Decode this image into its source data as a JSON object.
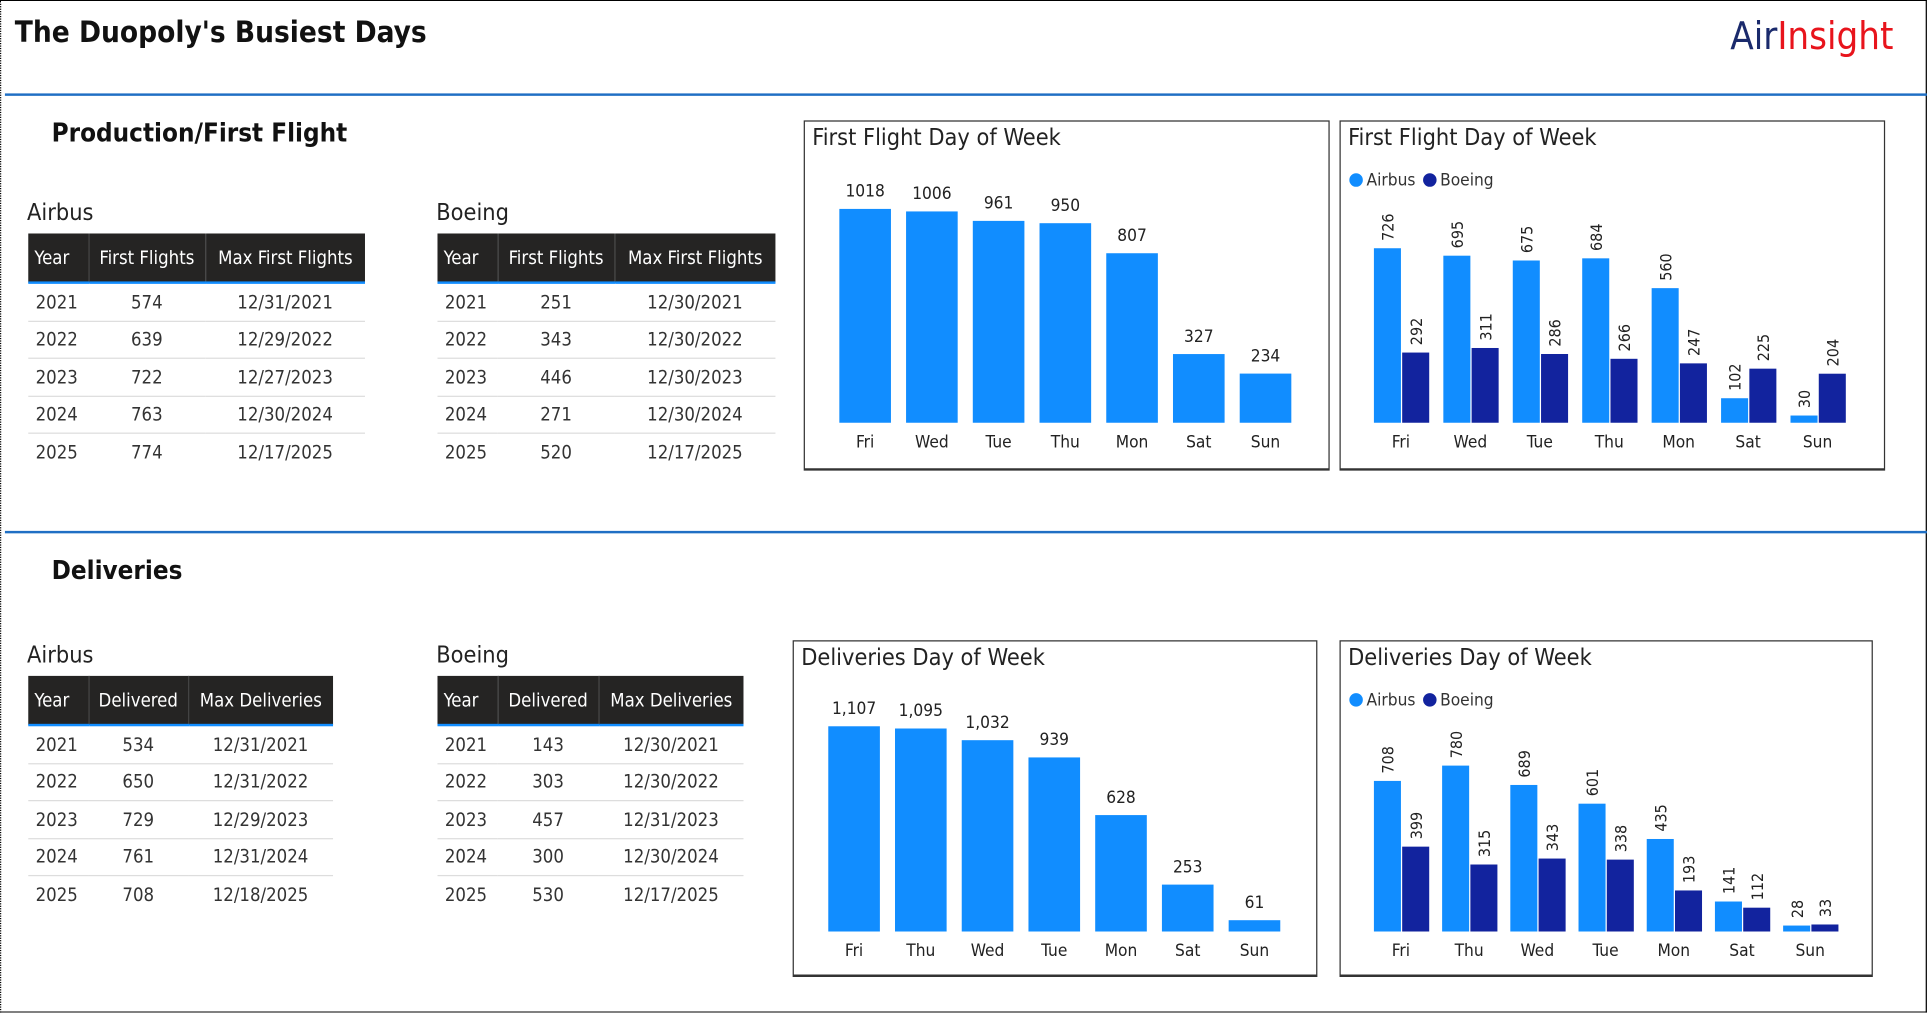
{
  "header": {
    "title": "The Duopoly's Busiest Days",
    "logo_part1": "Air",
    "logo_part2": "Insight",
    "logo_colors": [
      "#1a2a6c",
      "#e8141c"
    ]
  },
  "colors": {
    "airbus": "#118dff",
    "boeing": "#12239e",
    "rule": "#1f6fc4"
  },
  "production": {
    "heading": "Production/First Flight",
    "airbus": {
      "label": "Airbus",
      "columns": [
        "Year",
        "First Flights",
        "Max First Flights"
      ],
      "rows": [
        [
          "2021",
          "574",
          "12/31/2021"
        ],
        [
          "2022",
          "639",
          "12/29/2022"
        ],
        [
          "2023",
          "722",
          "12/27/2023"
        ],
        [
          "2024",
          "763",
          "12/30/2024"
        ],
        [
          "2025",
          "774",
          "12/17/2025"
        ]
      ]
    },
    "boeing": {
      "label": "Boeing",
      "columns": [
        "Year",
        "First Flights",
        "Max First Flights"
      ],
      "rows": [
        [
          "2021",
          "251",
          "12/30/2021"
        ],
        [
          "2022",
          "343",
          "12/30/2022"
        ],
        [
          "2023",
          "446",
          "12/30/2023"
        ],
        [
          "2024",
          "271",
          "12/30/2024"
        ],
        [
          "2025",
          "520",
          "12/17/2025"
        ]
      ]
    }
  },
  "deliveries": {
    "heading": "Deliveries",
    "airbus": {
      "label": "Airbus",
      "columns": [
        "Year",
        "Delivered",
        "Max Deliveries"
      ],
      "rows": [
        [
          "2021",
          "534",
          "12/31/2021"
        ],
        [
          "2022",
          "650",
          "12/31/2022"
        ],
        [
          "2023",
          "729",
          "12/29/2023"
        ],
        [
          "2024",
          "761",
          "12/31/2024"
        ],
        [
          "2025",
          "708",
          "12/18/2025"
        ]
      ]
    },
    "boeing": {
      "label": "Boeing",
      "columns": [
        "Year",
        "Delivered",
        "Max Deliveries"
      ],
      "rows": [
        [
          "2021",
          "143",
          "12/30/2021"
        ],
        [
          "2022",
          "303",
          "12/30/2022"
        ],
        [
          "2023",
          "457",
          "12/31/2023"
        ],
        [
          "2024",
          "300",
          "12/30/2024"
        ],
        [
          "2025",
          "530",
          "12/17/2025"
        ]
      ]
    }
  },
  "chart_data": [
    {
      "type": "bar",
      "title": "First Flight Day of Week",
      "categories": [
        "Fri",
        "Wed",
        "Tue",
        "Thu",
        "Mon",
        "Sat",
        "Sun"
      ],
      "series": [
        {
          "values": [
            1018,
            1006,
            961,
            950,
            807,
            327,
            234
          ]
        }
      ],
      "data_labels": [
        "1018",
        "1006",
        "961",
        "950",
        "807",
        "327",
        "234"
      ]
    },
    {
      "type": "bar",
      "title": "First Flight Day of Week",
      "legend": "top-left",
      "categories": [
        "Fri",
        "Wed",
        "Tue",
        "Thu",
        "Mon",
        "Sat",
        "Sun"
      ],
      "series": [
        {
          "name": "Airbus",
          "values": [
            726,
            695,
            675,
            684,
            560,
            102,
            30
          ]
        },
        {
          "name": "Boeing",
          "values": [
            292,
            311,
            286,
            266,
            247,
            225,
            204
          ]
        }
      ]
    },
    {
      "type": "bar",
      "title": "Deliveries Day of Week",
      "categories": [
        "Fri",
        "Thu",
        "Wed",
        "Tue",
        "Mon",
        "Sat",
        "Sun"
      ],
      "series": [
        {
          "values": [
            1107,
            1095,
            1032,
            939,
            628,
            253,
            61
          ]
        }
      ],
      "data_labels": [
        "1,107",
        "1,095",
        "1,032",
        "939",
        "628",
        "253",
        "61"
      ]
    },
    {
      "type": "bar",
      "title": "Deliveries Day of Week",
      "legend": "top-left",
      "categories": [
        "Fri",
        "Thu",
        "Wed",
        "Tue",
        "Mon",
        "Sat",
        "Sun"
      ],
      "series": [
        {
          "name": "Airbus",
          "values": [
            708,
            780,
            689,
            601,
            435,
            141,
            28
          ]
        },
        {
          "name": "Boeing",
          "values": [
            399,
            315,
            343,
            338,
            193,
            112,
            33
          ]
        }
      ]
    }
  ]
}
